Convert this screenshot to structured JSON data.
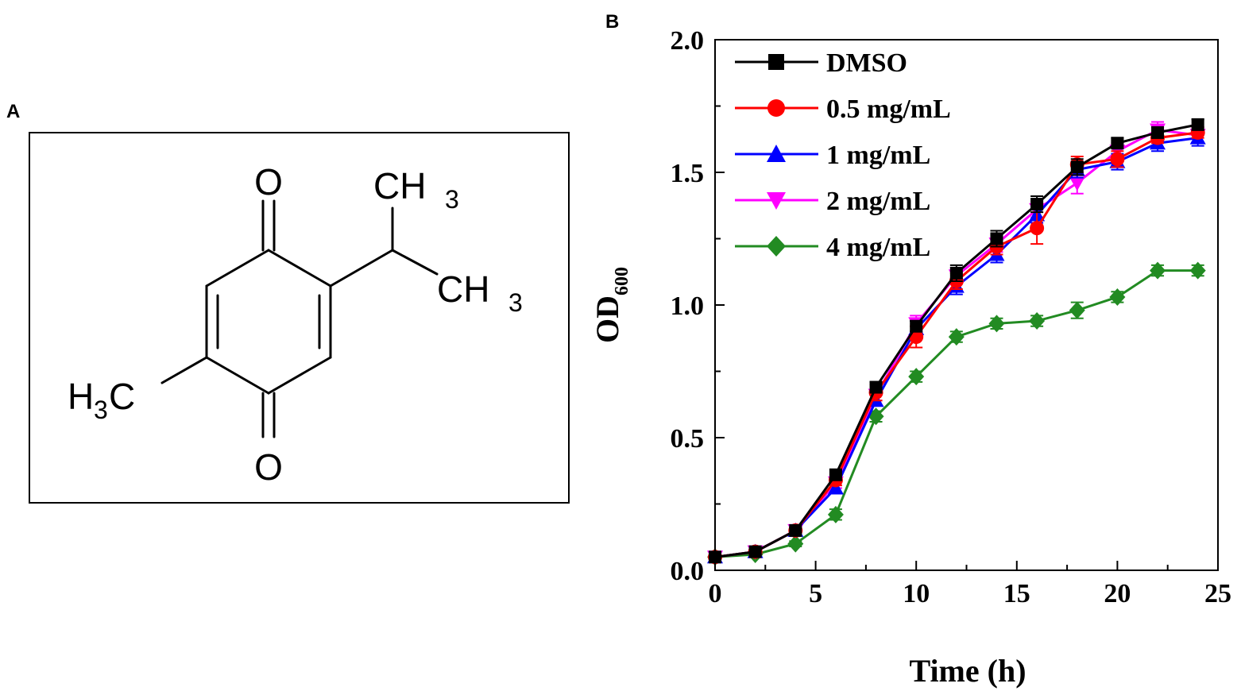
{
  "panels": {
    "a_label": "A",
    "b_label": "B"
  },
  "structure": {
    "atoms": {
      "o_top": "O",
      "o_bottom": "O",
      "ch3_top": "CH",
      "ch3_top_sub": "3",
      "ch3_right": "CH",
      "ch3_right_sub": "3",
      "h3c_h": "H",
      "h3c_sub": "3",
      "h3c_c": "C"
    }
  },
  "chart_data": {
    "type": "line",
    "xlabel": "Time (h)",
    "ylabel": "OD",
    "ylabel_sub": "600",
    "xlim": [
      0,
      25
    ],
    "ylim": [
      0.0,
      2.0
    ],
    "xticks": [
      "0",
      "5",
      "10",
      "15",
      "20",
      "25"
    ],
    "yticks": [
      "0.0",
      "0.5",
      "1.0",
      "1.5",
      "2.0"
    ],
    "grid": false,
    "legend_position": "top-left",
    "x": [
      0,
      2,
      4,
      6,
      8,
      10,
      12,
      14,
      16,
      18,
      20,
      22,
      24
    ],
    "series": [
      {
        "name": "DMSO",
        "color": "#000000",
        "marker": "square",
        "values": [
          0.05,
          0.07,
          0.15,
          0.36,
          0.69,
          0.92,
          1.12,
          1.25,
          1.38,
          1.52,
          1.61,
          1.65,
          1.68
        ],
        "errors": [
          0.01,
          0.01,
          0.01,
          0.02,
          0.02,
          0.02,
          0.03,
          0.03,
          0.03,
          0.03,
          0.02,
          0.02,
          0.02
        ]
      },
      {
        "name": "0.5 mg/mL",
        "color": "#ff0000",
        "marker": "circle",
        "values": [
          0.05,
          0.07,
          0.15,
          0.34,
          0.67,
          0.88,
          1.09,
          1.22,
          1.29,
          1.53,
          1.55,
          1.63,
          1.65
        ],
        "errors": [
          0.01,
          0.01,
          0.01,
          0.02,
          0.03,
          0.04,
          0.03,
          0.03,
          0.06,
          0.03,
          0.03,
          0.02,
          0.02
        ]
      },
      {
        "name": "1 mg/mL",
        "color": "#0000ff",
        "marker": "triangle-up",
        "values": [
          0.05,
          0.07,
          0.15,
          0.31,
          0.64,
          0.91,
          1.07,
          1.19,
          1.34,
          1.51,
          1.54,
          1.61,
          1.63
        ],
        "errors": [
          0.01,
          0.01,
          0.01,
          0.02,
          0.02,
          0.03,
          0.03,
          0.03,
          0.03,
          0.03,
          0.03,
          0.03,
          0.03
        ]
      },
      {
        "name": "2 mg/mL",
        "color": "#ff00ff",
        "marker": "triangle-down",
        "values": [
          0.05,
          0.07,
          0.15,
          0.33,
          0.66,
          0.93,
          1.11,
          1.23,
          1.36,
          1.46,
          1.58,
          1.66,
          1.64
        ],
        "errors": [
          0.01,
          0.01,
          0.01,
          0.02,
          0.02,
          0.03,
          0.03,
          0.03,
          0.03,
          0.04,
          0.03,
          0.03,
          0.03
        ]
      },
      {
        "name": "4 mg/mL",
        "color": "#228b22",
        "marker": "diamond",
        "values": [
          0.05,
          0.06,
          0.1,
          0.21,
          0.58,
          0.73,
          0.88,
          0.93,
          0.94,
          0.98,
          1.03,
          1.13,
          1.13
        ],
        "errors": [
          0.01,
          0.01,
          0.01,
          0.02,
          0.02,
          0.02,
          0.02,
          0.02,
          0.02,
          0.03,
          0.02,
          0.02,
          0.02
        ]
      }
    ]
  }
}
